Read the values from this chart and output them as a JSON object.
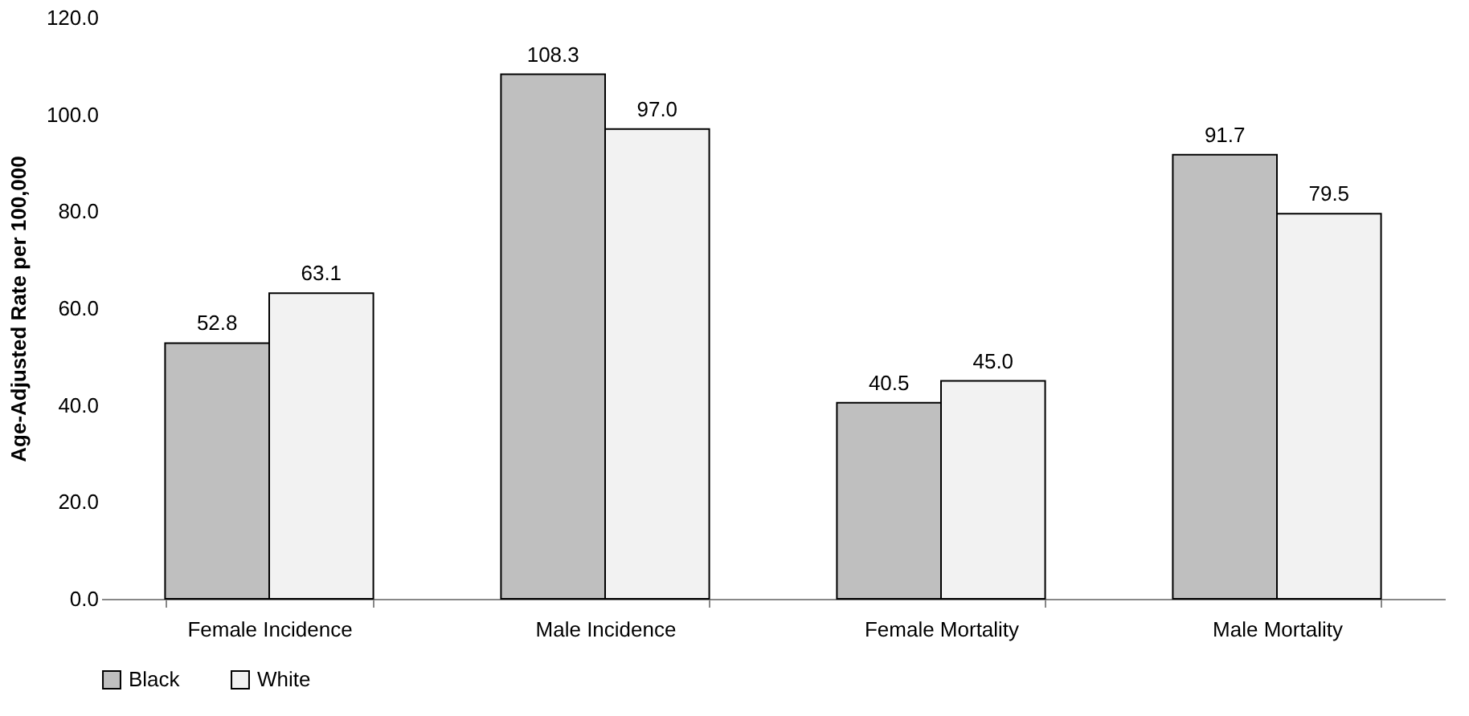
{
  "chart_data": {
    "type": "bar",
    "ylabel": "Age-Adjusted Rate per 100,000",
    "categories": [
      "Female Incidence",
      "Male Incidence",
      "Female Mortality",
      "Male Mortality"
    ],
    "series": [
      {
        "name": "Black",
        "color": "#bfbfbf",
        "values": [
          52.8,
          108.3,
          40.5,
          91.7
        ],
        "value_labels": [
          "52.8",
          "108.3",
          "40.5",
          "91.7"
        ]
      },
      {
        "name": "White",
        "color": "#f2f2f2",
        "values": [
          63.1,
          97.0,
          45.0,
          79.5
        ],
        "value_labels": [
          "63.1",
          "97.0",
          "45.0",
          "79.5"
        ]
      }
    ],
    "ylim": [
      0,
      120
    ],
    "yticks": [
      {
        "value": 0,
        "label": "0.0"
      },
      {
        "value": 20,
        "label": "20.0"
      },
      {
        "value": 40,
        "label": "40.0"
      },
      {
        "value": 60,
        "label": "60.0"
      },
      {
        "value": 80,
        "label": "80.0"
      },
      {
        "value": 100,
        "label": "100.0"
      },
      {
        "value": 120,
        "label": "120.0"
      }
    ],
    "grid": false,
    "legend": "bottom"
  }
}
